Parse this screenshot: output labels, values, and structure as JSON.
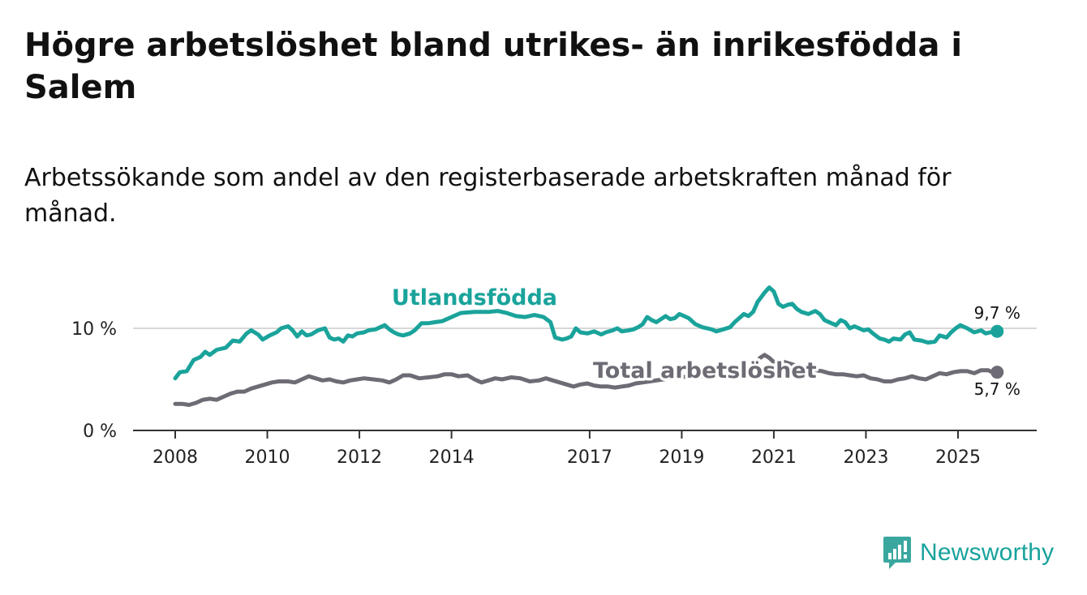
{
  "title": "Högre arbetslöshet bland utrikes- än inrikesfödda i Salem",
  "subtitle": "Arbetssökande som andel av den registerbaserade arbetskraften månad för månad.",
  "brand": {
    "name": "Newsworthy"
  },
  "colors": {
    "foreign": "#1aa39b",
    "total": "#6e6b74",
    "axis": "#333333",
    "grid": "#d7d7d7",
    "label_halo": "#ffffff"
  },
  "chart_data": {
    "type": "line",
    "x_range": [
      2007.9,
      2026.6
    ],
    "ylim": [
      0,
      16
    ],
    "y_ticks": [
      {
        "value": 0,
        "label": "0 %"
      },
      {
        "value": 10,
        "label": "10 %"
      }
    ],
    "x_ticks": [
      {
        "value": 2008,
        "label": "2008"
      },
      {
        "value": 2010,
        "label": "2010"
      },
      {
        "value": 2012,
        "label": "2012"
      },
      {
        "value": 2014,
        "label": "2014"
      },
      {
        "value": 2017,
        "label": "2017"
      },
      {
        "value": 2019,
        "label": "2019"
      },
      {
        "value": 2021,
        "label": "2021"
      },
      {
        "value": 2023,
        "label": "2023"
      },
      {
        "value": 2025,
        "label": "2025"
      }
    ],
    "series": [
      {
        "name": "Utlandsfödda",
        "key": "foreign",
        "end_label": "9,7 %",
        "label_at": [
          2014.5,
          12.3
        ],
        "points": [
          [
            2008.0,
            5.1
          ],
          [
            2008.1,
            5.7
          ],
          [
            2008.25,
            5.8
          ],
          [
            2008.4,
            6.9
          ],
          [
            2008.55,
            7.2
          ],
          [
            2008.65,
            7.7
          ],
          [
            2008.75,
            7.4
          ],
          [
            2008.9,
            7.9
          ],
          [
            2009.1,
            8.1
          ],
          [
            2009.25,
            8.8
          ],
          [
            2009.4,
            8.7
          ],
          [
            2009.55,
            9.5
          ],
          [
            2009.65,
            9.8
          ],
          [
            2009.8,
            9.4
          ],
          [
            2009.9,
            8.9
          ],
          [
            2010.05,
            9.3
          ],
          [
            2010.2,
            9.6
          ],
          [
            2010.3,
            10.0
          ],
          [
            2010.45,
            10.2
          ],
          [
            2010.55,
            9.8
          ],
          [
            2010.65,
            9.2
          ],
          [
            2010.75,
            9.7
          ],
          [
            2010.85,
            9.3
          ],
          [
            2010.95,
            9.4
          ],
          [
            2011.1,
            9.8
          ],
          [
            2011.25,
            10.0
          ],
          [
            2011.35,
            9.1
          ],
          [
            2011.45,
            8.9
          ],
          [
            2011.55,
            9.0
          ],
          [
            2011.65,
            8.7
          ],
          [
            2011.75,
            9.3
          ],
          [
            2011.85,
            9.2
          ],
          [
            2011.95,
            9.5
          ],
          [
            2012.1,
            9.6
          ],
          [
            2012.2,
            9.8
          ],
          [
            2012.35,
            9.9
          ],
          [
            2012.45,
            10.1
          ],
          [
            2012.55,
            10.3
          ],
          [
            2012.65,
            9.9
          ],
          [
            2012.75,
            9.6
          ],
          [
            2012.85,
            9.4
          ],
          [
            2012.95,
            9.3
          ],
          [
            2013.1,
            9.5
          ],
          [
            2013.2,
            9.8
          ],
          [
            2013.35,
            10.5
          ],
          [
            2013.5,
            10.5
          ],
          [
            2013.65,
            10.6
          ],
          [
            2013.8,
            10.7
          ],
          [
            2013.9,
            10.9
          ],
          [
            2014.0,
            11.1
          ],
          [
            2014.2,
            11.5
          ],
          [
            2014.5,
            11.6
          ],
          [
            2014.8,
            11.6
          ],
          [
            2015.0,
            11.7
          ],
          [
            2015.2,
            11.5
          ],
          [
            2015.4,
            11.2
          ],
          [
            2015.6,
            11.1
          ],
          [
            2015.8,
            11.3
          ],
          [
            2016.0,
            11.1
          ],
          [
            2016.15,
            10.6
          ],
          [
            2016.25,
            9.1
          ],
          [
            2016.4,
            8.9
          ],
          [
            2016.5,
            9.0
          ],
          [
            2016.6,
            9.2
          ],
          [
            2016.7,
            10.0
          ],
          [
            2016.8,
            9.6
          ],
          [
            2016.95,
            9.5
          ],
          [
            2017.1,
            9.7
          ],
          [
            2017.25,
            9.4
          ],
          [
            2017.35,
            9.6
          ],
          [
            2017.5,
            9.8
          ],
          [
            2017.6,
            10.0
          ],
          [
            2017.7,
            9.7
          ],
          [
            2017.85,
            9.8
          ],
          [
            2017.95,
            9.9
          ],
          [
            2018.05,
            10.1
          ],
          [
            2018.15,
            10.4
          ],
          [
            2018.25,
            11.1
          ],
          [
            2018.35,
            10.8
          ],
          [
            2018.45,
            10.6
          ],
          [
            2018.55,
            10.9
          ],
          [
            2018.65,
            11.2
          ],
          [
            2018.75,
            10.9
          ],
          [
            2018.85,
            11.0
          ],
          [
            2018.95,
            11.4
          ],
          [
            2019.05,
            11.2
          ],
          [
            2019.15,
            11.0
          ],
          [
            2019.3,
            10.4
          ],
          [
            2019.45,
            10.1
          ],
          [
            2019.55,
            10.0
          ],
          [
            2019.65,
            9.9
          ],
          [
            2019.75,
            9.7
          ],
          [
            2019.9,
            9.9
          ],
          [
            2020.05,
            10.1
          ],
          [
            2020.15,
            10.6
          ],
          [
            2020.25,
            11.0
          ],
          [
            2020.35,
            11.4
          ],
          [
            2020.45,
            11.2
          ],
          [
            2020.55,
            11.6
          ],
          [
            2020.65,
            12.6
          ],
          [
            2020.8,
            13.5
          ],
          [
            2020.9,
            14.0
          ],
          [
            2021.0,
            13.6
          ],
          [
            2021.1,
            12.4
          ],
          [
            2021.2,
            12.1
          ],
          [
            2021.3,
            12.3
          ],
          [
            2021.4,
            12.4
          ],
          [
            2021.5,
            11.9
          ],
          [
            2021.6,
            11.6
          ],
          [
            2021.75,
            11.4
          ],
          [
            2021.9,
            11.7
          ],
          [
            2022.0,
            11.4
          ],
          [
            2022.1,
            10.8
          ],
          [
            2022.25,
            10.5
          ],
          [
            2022.35,
            10.3
          ],
          [
            2022.45,
            10.8
          ],
          [
            2022.55,
            10.6
          ],
          [
            2022.65,
            10.0
          ],
          [
            2022.75,
            10.2
          ],
          [
            2022.85,
            10.0
          ],
          [
            2022.95,
            9.8
          ],
          [
            2023.05,
            9.9
          ],
          [
            2023.15,
            9.5
          ],
          [
            2023.3,
            9.0
          ],
          [
            2023.4,
            8.9
          ],
          [
            2023.5,
            8.7
          ],
          [
            2023.6,
            9.0
          ],
          [
            2023.75,
            8.9
          ],
          [
            2023.85,
            9.4
          ],
          [
            2023.95,
            9.6
          ],
          [
            2024.05,
            8.9
          ],
          [
            2024.2,
            8.8
          ],
          [
            2024.35,
            8.6
          ],
          [
            2024.5,
            8.7
          ],
          [
            2024.6,
            9.3
          ],
          [
            2024.75,
            9.1
          ],
          [
            2024.85,
            9.6
          ],
          [
            2024.95,
            10.0
          ],
          [
            2025.05,
            10.3
          ],
          [
            2025.2,
            10.0
          ],
          [
            2025.35,
            9.6
          ],
          [
            2025.5,
            9.8
          ],
          [
            2025.6,
            9.5
          ],
          [
            2025.7,
            9.6
          ],
          [
            2025.85,
            9.7
          ]
        ]
      },
      {
        "name": "Total arbetslöshet",
        "key": "total",
        "end_label": "5,7 %",
        "label_at": [
          2019.5,
          5.15
        ],
        "points": [
          [
            2008.0,
            2.6
          ],
          [
            2008.15,
            2.6
          ],
          [
            2008.3,
            2.5
          ],
          [
            2008.45,
            2.7
          ],
          [
            2008.6,
            3.0
          ],
          [
            2008.75,
            3.1
          ],
          [
            2008.9,
            3.0
          ],
          [
            2009.05,
            3.3
          ],
          [
            2009.2,
            3.6
          ],
          [
            2009.35,
            3.8
          ],
          [
            2009.5,
            3.8
          ],
          [
            2009.65,
            4.1
          ],
          [
            2009.8,
            4.3
          ],
          [
            2009.95,
            4.5
          ],
          [
            2010.1,
            4.7
          ],
          [
            2010.25,
            4.8
          ],
          [
            2010.45,
            4.8
          ],
          [
            2010.6,
            4.7
          ],
          [
            2010.75,
            5.0
          ],
          [
            2010.9,
            5.3
          ],
          [
            2011.05,
            5.1
          ],
          [
            2011.2,
            4.9
          ],
          [
            2011.35,
            5.0
          ],
          [
            2011.5,
            4.8
          ],
          [
            2011.65,
            4.7
          ],
          [
            2011.8,
            4.9
          ],
          [
            2011.95,
            5.0
          ],
          [
            2012.1,
            5.1
          ],
          [
            2012.3,
            5.0
          ],
          [
            2012.5,
            4.9
          ],
          [
            2012.65,
            4.7
          ],
          [
            2012.8,
            5.0
          ],
          [
            2012.95,
            5.4
          ],
          [
            2013.1,
            5.4
          ],
          [
            2013.3,
            5.1
          ],
          [
            2013.5,
            5.2
          ],
          [
            2013.7,
            5.3
          ],
          [
            2013.85,
            5.5
          ],
          [
            2014.0,
            5.5
          ],
          [
            2014.15,
            5.3
          ],
          [
            2014.35,
            5.4
          ],
          [
            2014.5,
            5.0
          ],
          [
            2014.65,
            4.7
          ],
          [
            2014.8,
            4.9
          ],
          [
            2014.95,
            5.1
          ],
          [
            2015.1,
            5.0
          ],
          [
            2015.3,
            5.2
          ],
          [
            2015.5,
            5.1
          ],
          [
            2015.7,
            4.8
          ],
          [
            2015.9,
            4.9
          ],
          [
            2016.05,
            5.1
          ],
          [
            2016.2,
            4.9
          ],
          [
            2016.35,
            4.7
          ],
          [
            2016.5,
            4.5
          ],
          [
            2016.65,
            4.3
          ],
          [
            2016.8,
            4.5
          ],
          [
            2016.95,
            4.6
          ],
          [
            2017.1,
            4.4
          ],
          [
            2017.25,
            4.3
          ],
          [
            2017.4,
            4.3
          ],
          [
            2017.55,
            4.2
          ],
          [
            2017.7,
            4.3
          ],
          [
            2017.85,
            4.4
          ],
          [
            2018.0,
            4.6
          ],
          [
            2018.3,
            4.8
          ],
          [
            2018.6,
            5.0
          ],
          [
            2018.9,
            5.2
          ],
          [
            2019.2,
            5.3
          ],
          [
            2019.5,
            5.3
          ],
          [
            2019.8,
            5.4
          ],
          [
            2020.1,
            5.6
          ],
          [
            2020.4,
            5.9
          ],
          [
            2020.6,
            6.3
          ],
          [
            2020.7,
            7.1
          ],
          [
            2020.8,
            7.4
          ],
          [
            2020.9,
            7.1
          ],
          [
            2021.0,
            6.7
          ],
          [
            2021.15,
            6.8
          ],
          [
            2021.3,
            6.6
          ],
          [
            2021.45,
            6.4
          ],
          [
            2021.6,
            6.2
          ],
          [
            2021.75,
            6.0
          ],
          [
            2021.9,
            5.9
          ],
          [
            2022.05,
            5.8
          ],
          [
            2022.2,
            5.6
          ],
          [
            2022.35,
            5.5
          ],
          [
            2022.5,
            5.5
          ],
          [
            2022.65,
            5.4
          ],
          [
            2022.8,
            5.3
          ],
          [
            2022.95,
            5.4
          ],
          [
            2023.1,
            5.1
          ],
          [
            2023.25,
            5.0
          ],
          [
            2023.4,
            4.8
          ],
          [
            2023.55,
            4.8
          ],
          [
            2023.7,
            5.0
          ],
          [
            2023.85,
            5.1
          ],
          [
            2024.0,
            5.3
          ],
          [
            2024.15,
            5.1
          ],
          [
            2024.3,
            5.0
          ],
          [
            2024.45,
            5.3
          ],
          [
            2024.6,
            5.6
          ],
          [
            2024.75,
            5.5
          ],
          [
            2024.9,
            5.7
          ],
          [
            2025.05,
            5.8
          ],
          [
            2025.2,
            5.8
          ],
          [
            2025.35,
            5.6
          ],
          [
            2025.5,
            5.9
          ],
          [
            2025.65,
            5.9
          ],
          [
            2025.75,
            5.7
          ],
          [
            2025.85,
            5.7
          ]
        ]
      }
    ]
  }
}
